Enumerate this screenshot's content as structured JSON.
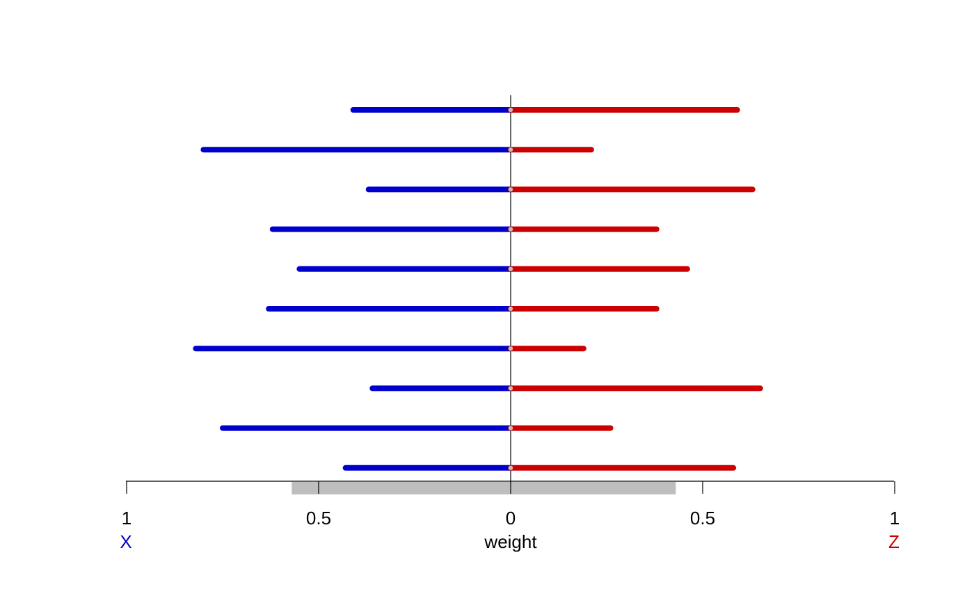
{
  "chart_data": {
    "type": "bar",
    "orientation": "horizontal-diverging",
    "xlabel": "weight",
    "left_label": "X",
    "right_label": "Z",
    "tick_labels": [
      "1",
      "0.5",
      "0",
      "0.5",
      "1"
    ],
    "xlim": [
      -1,
      1
    ],
    "grid": false,
    "legend": "none",
    "highlight_band": [
      -0.57,
      0.43
    ],
    "series": [
      {
        "name": "X",
        "color": "#0000cc",
        "values": [
          0.41,
          0.8,
          0.37,
          0.62,
          0.55,
          0.63,
          0.82,
          0.36,
          0.75,
          0.43
        ]
      },
      {
        "name": "Z",
        "color": "#cc0000",
        "values": [
          0.59,
          0.21,
          0.63,
          0.38,
          0.46,
          0.38,
          0.19,
          0.65,
          0.26,
          0.58
        ]
      }
    ],
    "colors": {
      "axis": "#000000",
      "band": "#bebebe",
      "center_marker": "#bebebe",
      "left": "#0000cc",
      "right": "#cc0000"
    }
  }
}
